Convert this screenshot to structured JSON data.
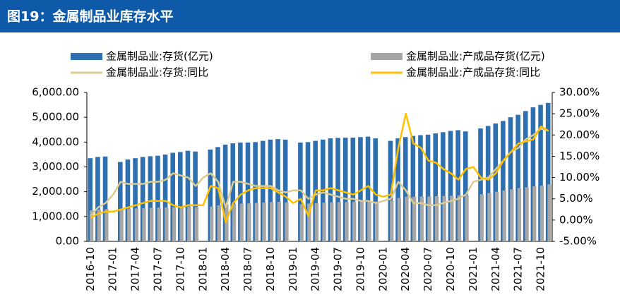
{
  "chart_data": {
    "type": "bar",
    "title": "图19：金属制品业库存水平",
    "categories": [
      "2016-10",
      null,
      null,
      "2017-01",
      null,
      null,
      "2017-04",
      null,
      null,
      "2017-07",
      null,
      null,
      "2017-10",
      null,
      null,
      "2018-01",
      null,
      null,
      "2018-04",
      null,
      null,
      "2018-07",
      null,
      null,
      "2018-10",
      null,
      null,
      "2019-01",
      null,
      null,
      "2019-04",
      null,
      null,
      "2019-07",
      null,
      null,
      "2019-10",
      null,
      null,
      "2020-01",
      null,
      null,
      "2020-04",
      null,
      null,
      "2020-07",
      null,
      null,
      "2020-10",
      null,
      null,
      "2021-01",
      null,
      null,
      "2021-04",
      null,
      null,
      "2021-07",
      null,
      null,
      "2021-10",
      null
    ],
    "series": [
      {
        "name": "金属制品业:存货(亿元)",
        "type": "bar",
        "color": "#2e6fb0",
        "axis": "y",
        "values": [
          3350,
          3400,
          3420,
          null,
          3200,
          3300,
          3350,
          3400,
          3430,
          3450,
          3500,
          3570,
          3600,
          3650,
          3620,
          null,
          3700,
          3800,
          3900,
          3950,
          3980,
          3980,
          4000,
          4050,
          4100,
          4120,
          4100,
          null,
          3980,
          4000,
          4050,
          4100,
          4150,
          4170,
          4180,
          4180,
          4200,
          4220,
          4150,
          null,
          4050,
          4150,
          4200,
          4250,
          4280,
          4300,
          4350,
          4400,
          4450,
          4480,
          4430,
          null,
          4550,
          4650,
          4750,
          4850,
          5000,
          5100,
          5250,
          5400,
          5500,
          5580
        ]
      },
      {
        "name": "金属制品业:产成品存货(亿元)",
        "type": "bar",
        "color": "#a6a6a6",
        "axis": "y",
        "values": [
          1250,
          1280,
          1300,
          null,
          1300,
          1320,
          1330,
          1340,
          1350,
          1360,
          1370,
          1380,
          1390,
          1400,
          1380,
          null,
          1400,
          1450,
          1480,
          1500,
          1520,
          1530,
          1550,
          1570,
          1580,
          1590,
          1570,
          null,
          1500,
          1520,
          1540,
          1560,
          1570,
          1580,
          1590,
          1600,
          1610,
          1620,
          1600,
          null,
          1650,
          1750,
          1800,
          1800,
          1810,
          1810,
          1820,
          1830,
          1840,
          1860,
          1850,
          null,
          1900,
          1950,
          2000,
          2050,
          2100,
          2150,
          2180,
          2220,
          2250,
          2300
        ]
      },
      {
        "name": "金属制品业:存货:同比",
        "type": "line",
        "color": "#dccb8e",
        "axis": "y2",
        "values": [
          1,
          3,
          4,
          6,
          9,
          8.5,
          8.5,
          8.5,
          9,
          9,
          9.5,
          11,
          10.5,
          10,
          8,
          10,
          11,
          9,
          3,
          9,
          9,
          8.5,
          8,
          8,
          8,
          7,
          6.5,
          7,
          7,
          5,
          6,
          6.5,
          6,
          5.5,
          5,
          5,
          4.5,
          4.5,
          4,
          4.5,
          5,
          9,
          7,
          4,
          4,
          3.5,
          3.5,
          4,
          4.5,
          5,
          6,
          9,
          9.5,
          10,
          12,
          14,
          16,
          17,
          19,
          20,
          21.5,
          21
        ]
      },
      {
        "name": "金属制品业:产成品存货:同比",
        "type": "line",
        "color": "#ffc000",
        "axis": "y2",
        "values": [
          0.5,
          1.5,
          2,
          2,
          2.5,
          3,
          3.5,
          4,
          4.5,
          4.5,
          4.5,
          3.5,
          3,
          3.5,
          3.5,
          3.5,
          8,
          7.5,
          -0.5,
          4,
          6,
          7,
          7.5,
          7.5,
          7.5,
          6.5,
          5.5,
          4,
          5,
          1,
          7,
          7,
          7.5,
          7,
          6.5,
          6,
          7,
          8,
          6,
          5.5,
          6,
          17,
          25,
          18,
          17,
          14,
          13.5,
          12,
          11,
          9.5,
          12,
          12.5,
          10,
          9.5,
          11,
          14,
          16,
          18,
          18.5,
          19,
          22,
          21
        ]
      }
    ],
    "ylim": [
      0,
      6000
    ],
    "yticks": [
      {
        "value": 0,
        "label": "0.00"
      },
      {
        "value": 1000,
        "label": "1,000.00"
      },
      {
        "value": 2000,
        "label": "2,000.00"
      },
      {
        "value": 3000,
        "label": "3,000.00"
      },
      {
        "value": 4000,
        "label": "4,000.00"
      },
      {
        "value": 5000,
        "label": "5,000.00"
      },
      {
        "value": 6000,
        "label": "6,000.00"
      }
    ],
    "y2lim": [
      -5,
      30
    ],
    "y2ticks": [
      {
        "value": -5,
        "label": "-5.00%"
      },
      {
        "value": 0,
        "label": "0.00%"
      },
      {
        "value": 5,
        "label": "5.00%"
      },
      {
        "value": 10,
        "label": "10.00%"
      },
      {
        "value": 15,
        "label": "15.00%"
      },
      {
        "value": 20,
        "label": "20.00%"
      },
      {
        "value": 25,
        "label": "25.00%"
      },
      {
        "value": 30,
        "label": "30.00%"
      }
    ]
  }
}
